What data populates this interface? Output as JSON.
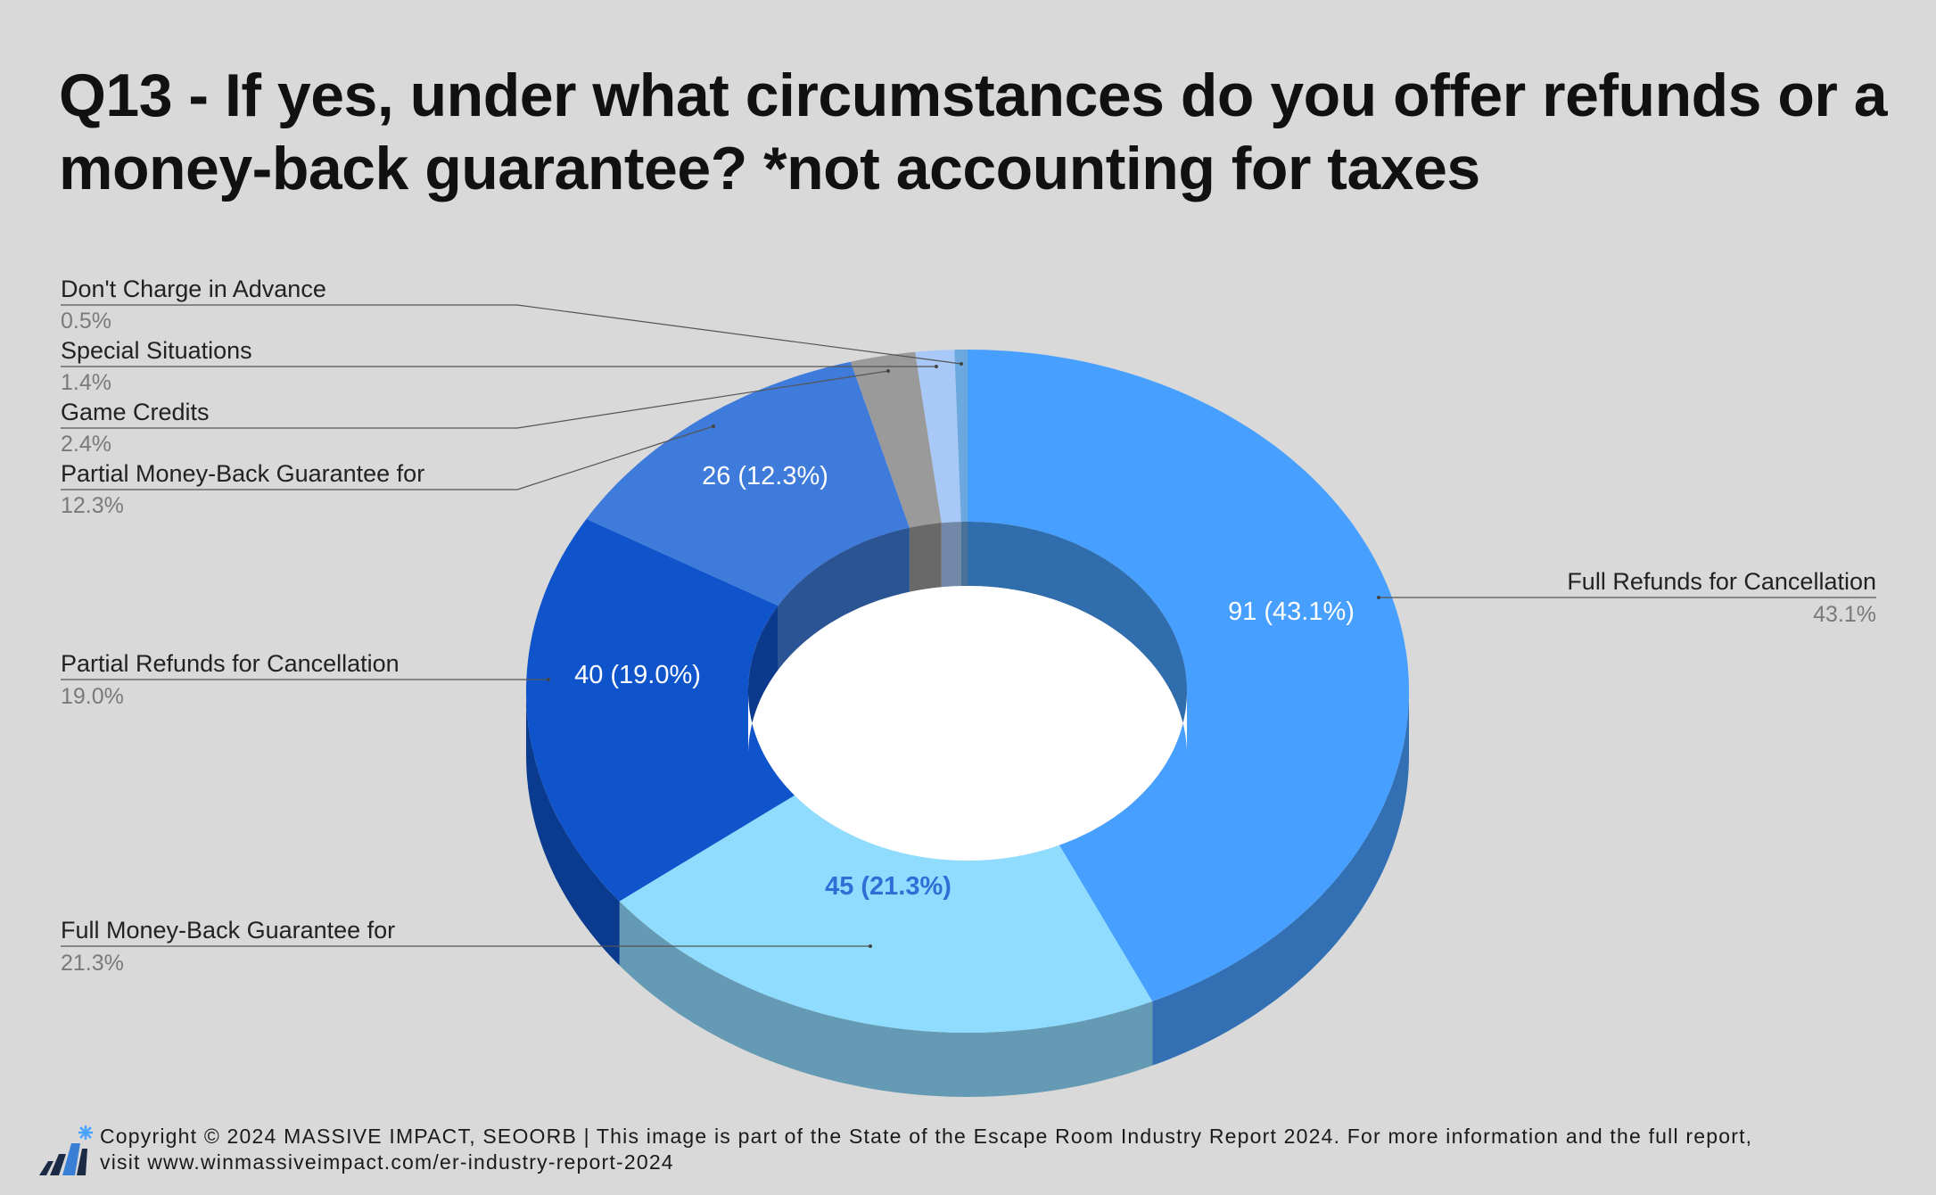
{
  "chart_data": {
    "type": "pie",
    "variant": "3d-donut",
    "title": "Q13 - If yes, under what circumstances do you offer refunds or a money-back guarantee? *not accounting for taxes",
    "slices": [
      {
        "label": "Full Refunds for Cancellation",
        "value": 91,
        "percent": "43.1%",
        "data_label": "91 (43.1%)",
        "color": "#47a0ff"
      },
      {
        "label": "Full Money-Back Guarantee for",
        "value": 45,
        "percent": "21.3%",
        "data_label": "45 (21.3%)",
        "color": "#8fdcff"
      },
      {
        "label": "Partial Refunds for Cancellation",
        "value": 40,
        "percent": "19.0%",
        "data_label": "40 (19.0%)",
        "color": "#1054cc"
      },
      {
        "label": "Partial Money-Back Guarantee for",
        "value": 26,
        "percent": "12.3%",
        "data_label": "26 (12.3%)",
        "color": "#3f7bdb"
      },
      {
        "label": "Game Credits",
        "value": 5,
        "percent": "2.4%",
        "data_label": "",
        "color": "#9a9a9a"
      },
      {
        "label": "Special Situations",
        "value": 3,
        "percent": "1.4%",
        "data_label": "",
        "color": "#a8c8f8"
      },
      {
        "label": "Don't Charge in Advance",
        "value": 1,
        "percent": "0.5%",
        "data_label": "",
        "color": "#6aa8de"
      }
    ],
    "legend": "none",
    "data_labels": "callouts"
  },
  "footer": {
    "text_line1": "Copyright © 2024 MASSIVE IMPACT, SEOORB | This image is part of the State of the Escape Room Industry Report 2024. For more information and the full report,",
    "text_line2": "visit www.winmassiveimpact.com/er-industry-report-2024",
    "logo_icon": "massive-impact-logo-icon"
  }
}
